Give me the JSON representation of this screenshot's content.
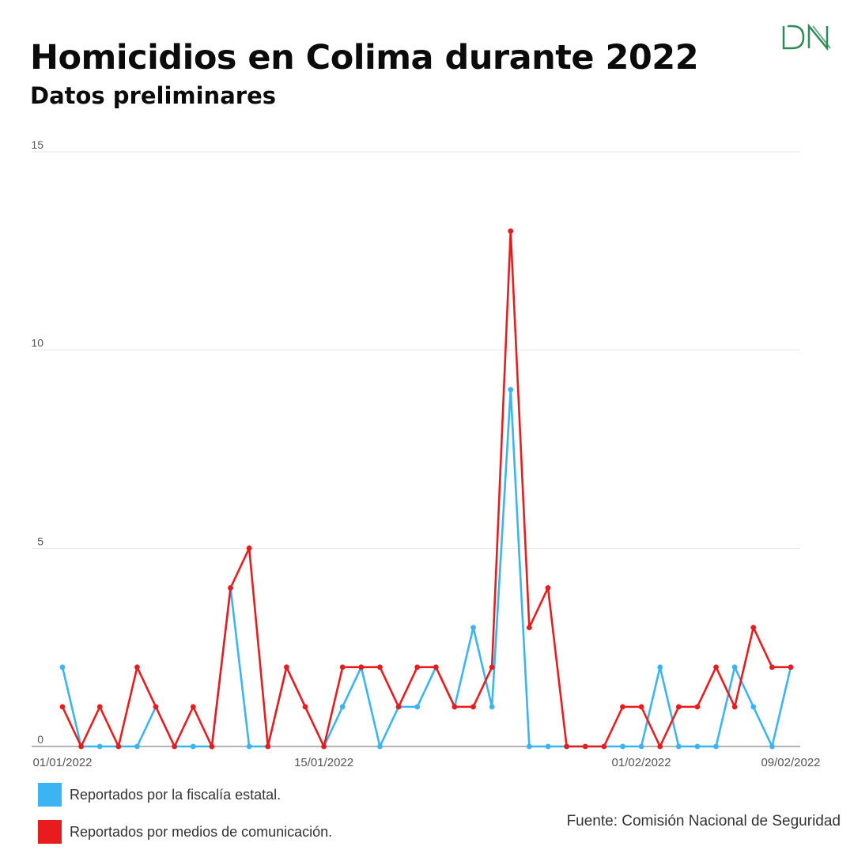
{
  "header": {
    "title": "Homicidios en Colima durante 2022",
    "subtitle": "Datos preliminares"
  },
  "logo": {
    "text": "DN",
    "color": "#2e8b57",
    "icon": "dn-logo-icon"
  },
  "source": "Fuente: Comisión Nacional de Seguridad",
  "chart_data": {
    "type": "line",
    "title": "Homicidios en Colima durante 2022",
    "subtitle": "Datos preliminares",
    "xlabel": "",
    "ylabel": "",
    "x": [
      "01/01/2022",
      "02/01/2022",
      "03/01/2022",
      "04/01/2022",
      "05/01/2022",
      "06/01/2022",
      "07/01/2022",
      "08/01/2022",
      "09/01/2022",
      "10/01/2022",
      "11/01/2022",
      "12/01/2022",
      "13/01/2022",
      "14/01/2022",
      "15/01/2022",
      "16/01/2022",
      "17/01/2022",
      "18/01/2022",
      "19/01/2022",
      "20/01/2022",
      "21/01/2022",
      "22/01/2022",
      "23/01/2022",
      "24/01/2022",
      "25/01/2022",
      "26/01/2022",
      "27/01/2022",
      "28/01/2022",
      "29/01/2022",
      "30/01/2022",
      "31/01/2022",
      "01/02/2022",
      "02/02/2022",
      "03/02/2022",
      "04/02/2022",
      "05/02/2022",
      "06/02/2022",
      "07/02/2022",
      "08/02/2022",
      "09/02/2022"
    ],
    "x_tick_labels": [
      {
        "index": 0,
        "label": "01/01/2022"
      },
      {
        "index": 14,
        "label": "15/01/2022"
      },
      {
        "index": 31,
        "label": "01/02/2022"
      },
      {
        "index": 39,
        "label": "09/02/2022"
      }
    ],
    "ylim": [
      0,
      15
    ],
    "yticks": [
      0,
      5,
      10,
      15
    ],
    "grid": true,
    "legend_position": "bottom-left",
    "series": [
      {
        "name": "Reportados por la fiscalía estatal.",
        "color": "#3bb4f2",
        "values": [
          2,
          0,
          0,
          0,
          0,
          1,
          0,
          0,
          0,
          4,
          0,
          0,
          2,
          1,
          0,
          1,
          2,
          0,
          1,
          1,
          2,
          1,
          3,
          1,
          9,
          0,
          0,
          0,
          0,
          0,
          0,
          0,
          2,
          0,
          0,
          0,
          2,
          1,
          0,
          2
        ],
        "point_mask": [
          1,
          1,
          1,
          1,
          1,
          1,
          1,
          1,
          1,
          1,
          1,
          1,
          0,
          0,
          1,
          1,
          1,
          1,
          1,
          1,
          1,
          1,
          1,
          1,
          1,
          1,
          1,
          1,
          0,
          0,
          1,
          1,
          1,
          1,
          1,
          1,
          1,
          1,
          1,
          1
        ]
      },
      {
        "name": "Reportados por medios de comunicación.",
        "color": "#e81c1c",
        "values": [
          1,
          0,
          1,
          0,
          2,
          1,
          0,
          1,
          0,
          4,
          5,
          0,
          2,
          1,
          0,
          2,
          2,
          2,
          1,
          2,
          2,
          1,
          1,
          2,
          13,
          3,
          4,
          0,
          0,
          0,
          1,
          1,
          0,
          1,
          1,
          2,
          1,
          3,
          2,
          2
        ],
        "point_mask": [
          1,
          1,
          1,
          1,
          1,
          1,
          1,
          1,
          1,
          1,
          1,
          1,
          1,
          1,
          1,
          1,
          1,
          1,
          1,
          1,
          1,
          1,
          1,
          1,
          1,
          1,
          1,
          1,
          1,
          1,
          1,
          1,
          1,
          1,
          1,
          1,
          1,
          1,
          1,
          1
        ]
      }
    ]
  }
}
